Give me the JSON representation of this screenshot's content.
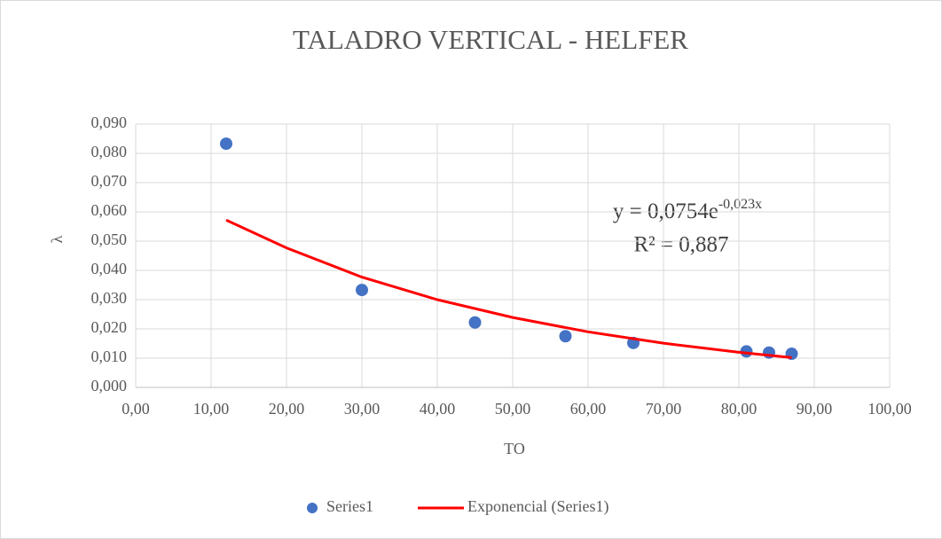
{
  "chart_data": {
    "type": "scatter",
    "title": "TALADRO VERTICAL - HELFER",
    "x_label": "TO",
    "y_label": "λ",
    "series": [
      {
        "name": "Series1",
        "type": "scatter",
        "color": "#4472c4",
        "x": [
          12,
          30,
          45,
          57,
          66,
          81,
          84,
          87
        ],
        "values": [
          0.0833,
          0.0333,
          0.0222,
          0.0175,
          0.0152,
          0.0123,
          0.0119,
          0.0115
        ]
      },
      {
        "name": "Exponencial (Series1)",
        "type": "line",
        "color": "#ff0000",
        "x": [
          12,
          20,
          30,
          40,
          50,
          60,
          70,
          80,
          87
        ],
        "values": [
          0.0572,
          0.0477,
          0.0377,
          0.03,
          0.0239,
          0.019,
          0.0151,
          0.012,
          0.0102
        ]
      }
    ],
    "equation": {
      "text": "y = 0,0754e",
      "exponent": "-0,023x"
    },
    "r_squared": "R² = 0,887",
    "xlim": [
      0,
      100
    ],
    "ylim": [
      0,
      0.09
    ],
    "xticks": [
      {
        "value": 0,
        "label": "0,00"
      },
      {
        "value": 10,
        "label": "10,00"
      },
      {
        "value": 20,
        "label": "20,00"
      },
      {
        "value": 30,
        "label": "30,00"
      },
      {
        "value": 40,
        "label": "40,00"
      },
      {
        "value": 50,
        "label": "50,00"
      },
      {
        "value": 60,
        "label": "60,00"
      },
      {
        "value": 70,
        "label": "70,00"
      },
      {
        "value": 80,
        "label": "80,00"
      },
      {
        "value": 90,
        "label": "90,00"
      },
      {
        "value": 100,
        "label": "100,00"
      }
    ],
    "yticks": [
      {
        "value": 0,
        "label": "0,000"
      },
      {
        "value": 0.01,
        "label": "0,010"
      },
      {
        "value": 0.02,
        "label": "0,020"
      },
      {
        "value": 0.03,
        "label": "0,030"
      },
      {
        "value": 0.04,
        "label": "0,040"
      },
      {
        "value": 0.05,
        "label": "0,050"
      },
      {
        "value": 0.06,
        "label": "0,060"
      },
      {
        "value": 0.07,
        "label": "0,070"
      },
      {
        "value": 0.08,
        "label": "0,080"
      },
      {
        "value": 0.09,
        "label": "0,090"
      }
    ],
    "grid": true,
    "legend": "bottom"
  }
}
